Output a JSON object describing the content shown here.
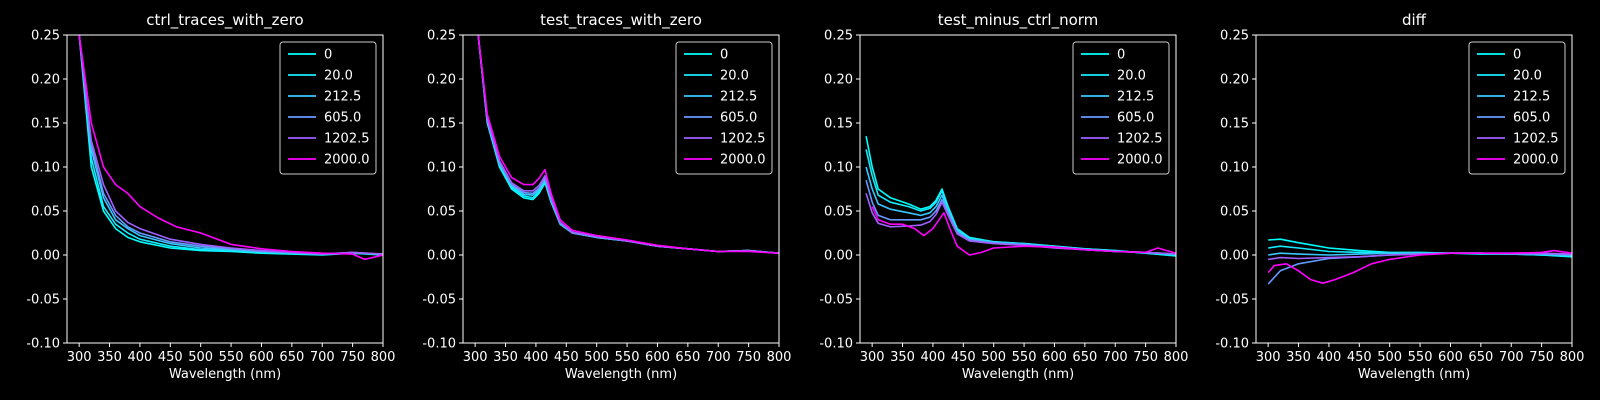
{
  "chart_data": [
    {
      "type": "line",
      "title": "ctrl_traces_with_zero",
      "xlabel": "Wavelength (nm)",
      "ylabel": "",
      "xlim": [
        280,
        800
      ],
      "ylim": [
        -0.1,
        0.25
      ],
      "xticks": [
        300,
        350,
        400,
        450,
        500,
        550,
        600,
        650,
        700,
        750,
        800
      ],
      "yticks": [
        -0.1,
        -0.05,
        0.0,
        0.05,
        0.1,
        0.15,
        0.2,
        0.25
      ],
      "legend_position": "upper-right",
      "series": [
        {
          "name": "0",
          "color": "#00ffff",
          "x": [
            300,
            320,
            340,
            360,
            380,
            400,
            450,
            500,
            550,
            600,
            650,
            700,
            750,
            800
          ],
          "y": [
            0.25,
            0.1,
            0.05,
            0.03,
            0.02,
            0.015,
            0.008,
            0.005,
            0.004,
            0.002,
            0.001,
            0.0,
            0.002,
            0.0
          ]
        },
        {
          "name": "20.0",
          "color": "#14ebff",
          "x": [
            300,
            320,
            340,
            360,
            380,
            400,
            450,
            500,
            550,
            600,
            650,
            700,
            750,
            800
          ],
          "y": [
            0.25,
            0.11,
            0.055,
            0.035,
            0.025,
            0.018,
            0.01,
            0.006,
            0.005,
            0.003,
            0.002,
            0.001,
            0.002,
            0.001
          ]
        },
        {
          "name": "212.5",
          "color": "#38c7ff",
          "x": [
            300,
            320,
            340,
            360,
            380,
            400,
            450,
            500,
            550,
            600,
            650,
            700,
            750,
            800
          ],
          "y": [
            0.25,
            0.12,
            0.065,
            0.04,
            0.03,
            0.022,
            0.013,
            0.008,
            0.006,
            0.004,
            0.002,
            0.001,
            0.002,
            0.001
          ]
        },
        {
          "name": "605.0",
          "color": "#649bff",
          "x": [
            300,
            320,
            340,
            360,
            380,
            400,
            450,
            500,
            550,
            600,
            650,
            700,
            750,
            800
          ],
          "y": [
            0.25,
            0.125,
            0.07,
            0.045,
            0.032,
            0.025,
            0.015,
            0.01,
            0.007,
            0.004,
            0.003,
            0.001,
            0.003,
            0.001
          ]
        },
        {
          "name": "1202.5",
          "color": "#a05fff",
          "x": [
            300,
            320,
            340,
            360,
            380,
            400,
            450,
            500,
            550,
            600,
            650,
            700,
            750,
            800
          ],
          "y": [
            0.25,
            0.13,
            0.08,
            0.05,
            0.037,
            0.03,
            0.018,
            0.012,
            0.008,
            0.005,
            0.003,
            0.001,
            0.003,
            0.001
          ]
        },
        {
          "name": "2000.0",
          "color": "#ff00ff",
          "x": [
            300,
            320,
            340,
            360,
            380,
            400,
            430,
            460,
            500,
            550,
            600,
            650,
            700,
            750,
            770,
            800
          ],
          "y": [
            0.25,
            0.15,
            0.1,
            0.08,
            0.07,
            0.055,
            0.042,
            0.032,
            0.025,
            0.012,
            0.007,
            0.004,
            0.002,
            0.001,
            -0.005,
            0.0
          ]
        }
      ]
    },
    {
      "type": "line",
      "title": "test_traces_with_zero",
      "xlabel": "Wavelength (nm)",
      "ylabel": "",
      "xlim": [
        280,
        800
      ],
      "ylim": [
        -0.1,
        0.25
      ],
      "xticks": [
        300,
        350,
        400,
        450,
        500,
        550,
        600,
        650,
        700,
        750,
        800
      ],
      "yticks": [
        -0.1,
        -0.05,
        0.0,
        0.05,
        0.1,
        0.15,
        0.2,
        0.25
      ],
      "legend_position": "upper-right",
      "series": [
        {
          "name": "0",
          "color": "#00ffff",
          "x": [
            305,
            320,
            340,
            360,
            380,
            395,
            405,
            415,
            425,
            440,
            460,
            500,
            550,
            600,
            650,
            700,
            750,
            800
          ],
          "y": [
            0.25,
            0.15,
            0.1,
            0.075,
            0.065,
            0.063,
            0.07,
            0.082,
            0.06,
            0.035,
            0.025,
            0.02,
            0.016,
            0.01,
            0.007,
            0.004,
            0.005,
            0.002
          ]
        },
        {
          "name": "20.0",
          "color": "#14ebff",
          "x": [
            305,
            320,
            340,
            360,
            380,
            395,
            405,
            415,
            425,
            440,
            460,
            500,
            550,
            600,
            650,
            700,
            750,
            800
          ],
          "y": [
            0.25,
            0.15,
            0.102,
            0.077,
            0.067,
            0.065,
            0.072,
            0.084,
            0.061,
            0.035,
            0.025,
            0.02,
            0.016,
            0.01,
            0.007,
            0.004,
            0.005,
            0.002
          ]
        },
        {
          "name": "212.5",
          "color": "#38c7ff",
          "x": [
            305,
            320,
            340,
            360,
            380,
            395,
            405,
            415,
            425,
            440,
            460,
            500,
            550,
            600,
            650,
            700,
            750,
            800
          ],
          "y": [
            0.25,
            0.152,
            0.104,
            0.079,
            0.069,
            0.068,
            0.074,
            0.086,
            0.062,
            0.036,
            0.025,
            0.02,
            0.016,
            0.01,
            0.007,
            0.004,
            0.005,
            0.002
          ]
        },
        {
          "name": "605.0",
          "color": "#649bff",
          "x": [
            305,
            320,
            340,
            360,
            380,
            395,
            405,
            415,
            425,
            440,
            460,
            500,
            550,
            600,
            650,
            700,
            750,
            800
          ],
          "y": [
            0.25,
            0.153,
            0.105,
            0.08,
            0.071,
            0.07,
            0.076,
            0.087,
            0.063,
            0.036,
            0.025,
            0.02,
            0.016,
            0.01,
            0.007,
            0.004,
            0.005,
            0.002
          ]
        },
        {
          "name": "1202.5",
          "color": "#a05fff",
          "x": [
            305,
            320,
            340,
            360,
            380,
            395,
            405,
            415,
            425,
            440,
            460,
            500,
            550,
            600,
            650,
            700,
            750,
            800
          ],
          "y": [
            0.25,
            0.155,
            0.107,
            0.082,
            0.073,
            0.073,
            0.079,
            0.09,
            0.065,
            0.037,
            0.026,
            0.021,
            0.016,
            0.01,
            0.007,
            0.004,
            0.005,
            0.002
          ]
        },
        {
          "name": "2000.0",
          "color": "#ff00ff",
          "x": [
            305,
            320,
            340,
            360,
            380,
            395,
            405,
            415,
            425,
            440,
            460,
            500,
            550,
            600,
            650,
            700,
            750,
            800
          ],
          "y": [
            0.25,
            0.16,
            0.112,
            0.088,
            0.08,
            0.08,
            0.087,
            0.097,
            0.07,
            0.04,
            0.028,
            0.022,
            0.017,
            0.011,
            0.007,
            0.004,
            0.004,
            0.002
          ]
        }
      ]
    },
    {
      "type": "line",
      "title": "test_minus_ctrl_norm",
      "xlabel": "Wavelength (nm)",
      "ylabel": "",
      "xlim": [
        280,
        800
      ],
      "ylim": [
        -0.1,
        0.25
      ],
      "xticks": [
        300,
        350,
        400,
        450,
        500,
        550,
        600,
        650,
        700,
        750,
        800
      ],
      "yticks": [
        -0.1,
        -0.05,
        0.0,
        0.05,
        0.1,
        0.15,
        0.2,
        0.25
      ],
      "legend_position": "upper-right",
      "series": [
        {
          "name": "0",
          "color": "#00ffff",
          "x": [
            290,
            300,
            310,
            330,
            360,
            380,
            395,
            405,
            415,
            425,
            440,
            460,
            500,
            550,
            600,
            650,
            700,
            750,
            800
          ],
          "y": [
            0.135,
            0.1,
            0.075,
            0.065,
            0.058,
            0.052,
            0.055,
            0.062,
            0.075,
            0.055,
            0.03,
            0.02,
            0.015,
            0.013,
            0.01,
            0.007,
            0.005,
            0.002,
            -0.001
          ]
        },
        {
          "name": "20.0",
          "color": "#14ebff",
          "x": [
            290,
            300,
            310,
            330,
            360,
            380,
            395,
            405,
            415,
            425,
            440,
            460,
            500,
            550,
            600,
            650,
            700,
            750,
            800
          ],
          "y": [
            0.12,
            0.09,
            0.068,
            0.06,
            0.055,
            0.05,
            0.053,
            0.06,
            0.073,
            0.054,
            0.029,
            0.019,
            0.015,
            0.013,
            0.01,
            0.007,
            0.005,
            0.002,
            0.0
          ]
        },
        {
          "name": "212.5",
          "color": "#38c7ff",
          "x": [
            290,
            300,
            310,
            330,
            360,
            380,
            395,
            405,
            415,
            425,
            440,
            460,
            500,
            550,
            600,
            650,
            700,
            750,
            800
          ],
          "y": [
            0.1,
            0.075,
            0.058,
            0.052,
            0.048,
            0.045,
            0.048,
            0.055,
            0.068,
            0.05,
            0.027,
            0.018,
            0.014,
            0.012,
            0.009,
            0.006,
            0.004,
            0.003,
            0.001
          ]
        },
        {
          "name": "605.0",
          "color": "#649bff",
          "x": [
            290,
            300,
            310,
            330,
            360,
            380,
            395,
            405,
            415,
            425,
            440,
            460,
            500,
            550,
            600,
            650,
            700,
            750,
            800
          ],
          "y": [
            0.085,
            0.06,
            0.045,
            0.04,
            0.04,
            0.04,
            0.043,
            0.05,
            0.063,
            0.048,
            0.026,
            0.017,
            0.014,
            0.012,
            0.009,
            0.006,
            0.004,
            0.003,
            0.001
          ]
        },
        {
          "name": "1202.5",
          "color": "#a05fff",
          "x": [
            290,
            300,
            310,
            330,
            360,
            380,
            395,
            405,
            415,
            425,
            440,
            460,
            500,
            550,
            600,
            650,
            700,
            750,
            800
          ],
          "y": [
            0.07,
            0.048,
            0.036,
            0.032,
            0.033,
            0.034,
            0.038,
            0.046,
            0.06,
            0.045,
            0.024,
            0.016,
            0.013,
            0.011,
            0.008,
            0.006,
            0.004,
            0.003,
            0.001
          ]
        },
        {
          "name": "2000.0",
          "color": "#ff00ff",
          "x": [
            300,
            310,
            330,
            350,
            370,
            385,
            400,
            410,
            418,
            428,
            440,
            460,
            480,
            500,
            550,
            600,
            650,
            700,
            750,
            770,
            800
          ],
          "y": [
            0.055,
            0.04,
            0.035,
            0.035,
            0.03,
            0.022,
            0.03,
            0.04,
            0.048,
            0.03,
            0.01,
            0.0,
            0.003,
            0.008,
            0.01,
            0.009,
            0.006,
            0.004,
            0.003,
            0.008,
            0.002
          ]
        }
      ]
    },
    {
      "type": "line",
      "title": "diff",
      "xlabel": "Wavelength (nm)",
      "ylabel": "",
      "xlim": [
        280,
        800
      ],
      "ylim": [
        -0.1,
        0.25
      ],
      "xticks": [
        300,
        350,
        400,
        450,
        500,
        550,
        600,
        650,
        700,
        750,
        800
      ],
      "yticks": [
        -0.1,
        -0.05,
        0.0,
        0.05,
        0.1,
        0.15,
        0.2,
        0.25
      ],
      "legend_position": "upper-right",
      "series": [
        {
          "name": "0",
          "color": "#00ffff",
          "x": [
            300,
            320,
            350,
            400,
            450,
            500,
            550,
            600,
            650,
            700,
            750,
            800
          ],
          "y": [
            0.017,
            0.018,
            0.014,
            0.008,
            0.005,
            0.003,
            0.003,
            0.002,
            0.002,
            0.001,
            0.0,
            -0.002
          ]
        },
        {
          "name": "20.0",
          "color": "#14ebff",
          "x": [
            300,
            320,
            350,
            400,
            450,
            500,
            550,
            600,
            650,
            700,
            750,
            800
          ],
          "y": [
            0.008,
            0.01,
            0.008,
            0.004,
            0.003,
            0.002,
            0.002,
            0.002,
            0.001,
            0.001,
            0.0,
            -0.001
          ]
        },
        {
          "name": "212.5",
          "color": "#38c7ff",
          "x": [
            300,
            320,
            350,
            400,
            450,
            500,
            550,
            600,
            650,
            700,
            750,
            800
          ],
          "y": [
            0.0,
            0.002,
            0.001,
            0.0,
            0.001,
            0.002,
            0.002,
            0.002,
            0.002,
            0.001,
            0.001,
            0.0
          ]
        },
        {
          "name": "605.0",
          "color": "#649bff",
          "x": [
            300,
            320,
            350,
            400,
            450,
            500,
            550,
            600,
            650,
            700,
            750,
            800
          ],
          "y": [
            -0.033,
            -0.018,
            -0.01,
            -0.004,
            -0.002,
            0.0,
            0.001,
            0.002,
            0.002,
            0.001,
            0.001,
            0.0
          ]
        },
        {
          "name": "1202.5",
          "color": "#a05fff",
          "x": [
            300,
            320,
            350,
            400,
            450,
            500,
            550,
            600,
            650,
            700,
            750,
            800
          ],
          "y": [
            -0.005,
            -0.003,
            -0.004,
            -0.003,
            -0.002,
            0.0,
            0.001,
            0.002,
            0.002,
            0.002,
            0.002,
            0.001
          ]
        },
        {
          "name": "2000.0",
          "color": "#ff00ff",
          "x": [
            300,
            310,
            330,
            350,
            370,
            390,
            410,
            440,
            470,
            500,
            550,
            600,
            650,
            700,
            750,
            770,
            800
          ],
          "y": [
            -0.02,
            -0.012,
            -0.01,
            -0.018,
            -0.028,
            -0.032,
            -0.028,
            -0.02,
            -0.01,
            -0.005,
            0.0,
            0.002,
            0.002,
            0.002,
            0.003,
            0.005,
            0.002
          ]
        }
      ]
    }
  ]
}
